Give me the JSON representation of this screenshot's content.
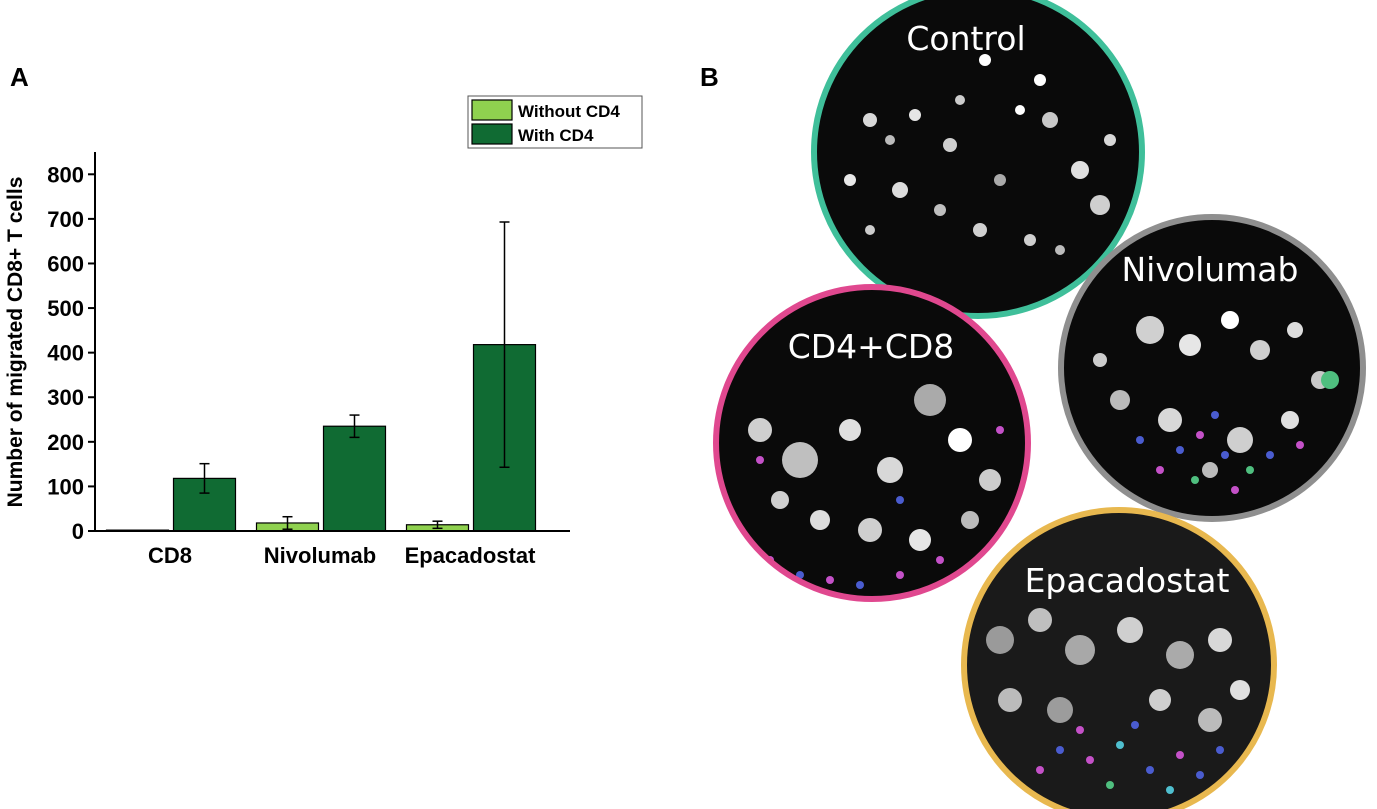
{
  "panels": {
    "a_label": "A",
    "b_label": "B"
  },
  "chart_data": {
    "type": "bar",
    "title": "",
    "xlabel": "",
    "ylabel": "Number of migrated CD8+ T cells",
    "categories": [
      "CD8",
      "Nivolumab",
      "Epacadostat"
    ],
    "series": [
      {
        "name": "Without CD4",
        "color": "#8fd14f",
        "values": [
          2,
          18,
          14
        ],
        "errors": [
          0,
          14,
          8
        ]
      },
      {
        "name": "With CD4",
        "color": "#106b33",
        "values": [
          118,
          235,
          418
        ],
        "errors": [
          33,
          25,
          275
        ]
      }
    ],
    "ylim": [
      0,
      850
    ],
    "yticks": [
      0,
      100,
      200,
      300,
      400,
      500,
      600,
      700,
      800
    ],
    "grid": false,
    "legend_position": "top-right"
  },
  "micrographs": [
    {
      "label": "Control",
      "ring_color": "#3fbf9a"
    },
    {
      "label": "Nivolumab",
      "ring_color": "#8f8f8f"
    },
    {
      "label": "CD4+CD8",
      "ring_color": "#e0488f"
    },
    {
      "label": "Epacadostat",
      "ring_color": "#e8b84f"
    }
  ]
}
